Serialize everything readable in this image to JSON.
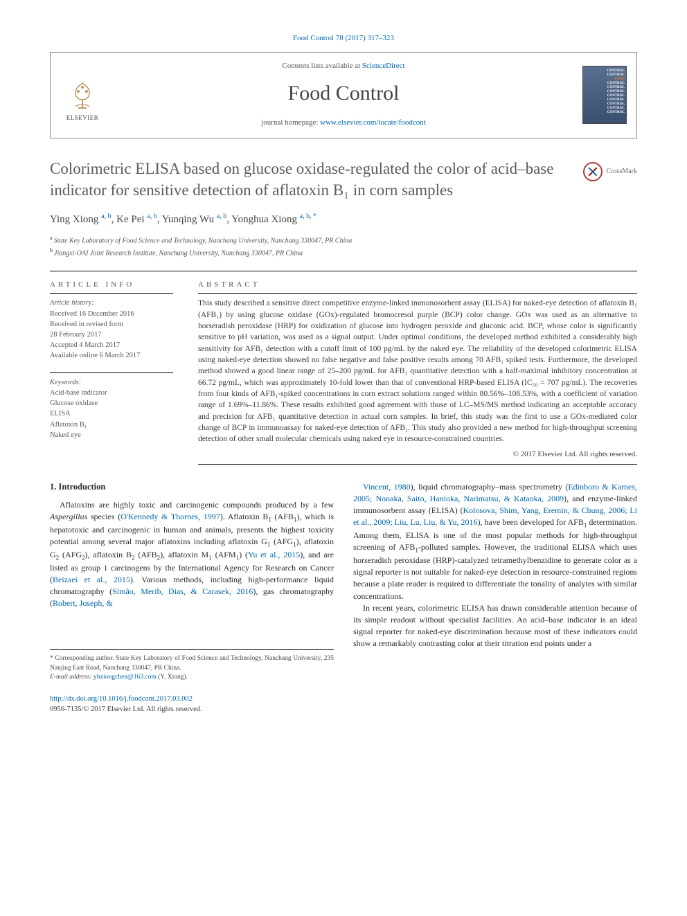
{
  "citation": {
    "journal": "Food Control",
    "vol_pages": "78 (2017) 317–323"
  },
  "header": {
    "contents_prefix": "Contents lists available at ",
    "contents_link": "ScienceDirect",
    "journal_name": "Food Control",
    "homepage_prefix": "journal homepage: ",
    "homepage_url": "www.elsevier.com/locate/foodcont",
    "elsevier_label": "ELSEVIER",
    "cover_lines": [
      "CONTROL",
      "CONTROL",
      "FOOD",
      "CONTROL",
      "CONTROL",
      "CONTROL",
      "CONTROL",
      "CONTROL",
      "CONTROL",
      "CONTROL",
      "CONTROL"
    ]
  },
  "title": "Colorimetric ELISA based on glucose oxidase-regulated the color of acid–base indicator for sensitive detection of aflatoxin B₁ in corn samples",
  "crossmark_label": "CrossMark",
  "authors_html": "Ying Xiong <span class='sup'>a, b</span>, Ke Pei <span class='sup'>a, b</span>, Yunqing Wu <span class='sup'>a, b</span>, Yonghua Xiong <span class='sup'>a, b, *</span>",
  "affiliations": [
    {
      "sup": "a",
      "text": "State Key Laboratory of Food Science and Technology, Nanchang University, Nanchang 330047, PR China"
    },
    {
      "sup": "b",
      "text": "Jiangxi-OAI Joint Research Institute, Nanchang University, Nanchang 330047, PR China"
    }
  ],
  "article_info": {
    "heading": "ARTICLE INFO",
    "history_label": "Article history:",
    "history": [
      "Received 16 December 2016",
      "Received in revised form",
      "28 February 2017",
      "Accepted 4 March 2017",
      "Available online 6 March 2017"
    ],
    "keywords_label": "Keywords:",
    "keywords": [
      "Acid-base indicator",
      "Glucose oxidase",
      "ELISA",
      "Aflatoxin B₁",
      "Naked eye"
    ]
  },
  "abstract": {
    "heading": "ABSTRACT",
    "text": "This study described a sensitive direct competitive enzyme-linked immunosorbent assay (ELISA) for naked-eye detection of aflatoxin B₁ (AFB₁) by using glucose oxidase (GOx)-regulated bromocresol purple (BCP) color change. GOx was used as an alternative to horseradish peroxidase (HRP) for oxidization of glucose into hydrogen peroxide and gluconic acid. BCP, whose color is significantly sensitive to pH variation, was used as a signal output. Under optimal conditions, the developed method exhibited a considerably high sensitivity for AFB₁ detection with a cutoff limit of 100 pg/mL by the naked eye. The reliability of the developed colorimetric ELISA using naked-eye detection showed no false negative and false positive results among 70 AFB₁ spiked tests. Furthermore, the developed method showed a good linear range of 25–200 pg/mL for AFB₁ quantitative detection with a half-maximal inhibitory concentration at 66.72 pg/mL, which was approximately 10-fold lower than that of conventional HRP-based ELISA (IC₅₀ = 707 pg/mL). The recoveries from four kinds of AFB₁-spiked concentrations in corn extract solutions ranged within 80.56%–108.53%, with a coefficient of variation range of 1.69%–11.86%. These results exhibited good agreement with those of LC–MS/MS method indicating an acceptable accuracy and precision for AFB₁ quantitative detection in actual corn samples. In brief, this study was the first to use a GOx-mediated color change of BCP in immunoassay for naked-eye detection of AFB₁. This study also provided a new method for high-throughput screening detection of other small molecular chemicals using naked eye in resource-constrained countries.",
    "copyright": "© 2017 Elsevier Ltd. All rights reserved."
  },
  "body": {
    "section_no": "1.",
    "section_title": "Introduction",
    "left_html": "Aflatoxins are highly toxic and carcinogenic compounds produced by a few <i>Aspergillus</i> species (<a href='#' class='ref-link'>O'Kennedy &amp; Thornes, 1997</a>). Aflatoxin B<sub>1</sub> (AFB<sub>1</sub>), which is hepatotoxic and carcinogenic in human and animals, presents the highest toxicity potential among several major aflatoxins including aflatoxin G<sub>1</sub> (AFG<sub>1</sub>), aflatoxin G<sub>2</sub> (AFG<sub>2</sub>), aflatoxin B<sub>2</sub> (AFB<sub>2</sub>), aflatoxin M<sub>1</sub> (AFM<sub>1</sub>) (<a href='#' class='ref-link'>Yu et al., 2015</a>), and are listed as group 1 carcinogens by the International Agency for Research on Cancer (<a href='#' class='ref-link'>Beizaei et al., 2015</a>). Various methods, including high-performance liquid chromatography (<a href='#' class='ref-link'>Simão, Merib, Dias, &amp; Carasek, 2016</a>), gas chromatography (<a href='#' class='ref-link'>Robert, Joseph, &amp;</a>",
    "right_html": "<a href='#' class='ref-link'>Vincent, 1980</a>), liquid chromatography–mass spectrometry (<a href='#' class='ref-link'>Edinboro &amp; Karnes, 2005; Nonaka, Saito, Hanioka, Narimatsu, &amp; Kataoka, 2009</a>), and enzyme-linked immunosorbent assay (ELISA) (<a href='#' class='ref-link'>Kolosova, Shim, Yang, Eremin, &amp; Chung, 2006; Li et al., 2009; Liu, Lu, Liu, &amp; Yu, 2016</a>), have been developed for AFB<sub>1</sub> determination. Among them, ELISA is one of the most popular methods for high-throughput screening of AFB<sub>1</sub>-polluted samples. However, the traditional ELISA which uses horseradish peroxidase (HRP)-catalyzed tetramethylbenzidine to generate color as a signal reporter is not suitable for naked-eye detection in resource-constrained regions because a plate reader is required to differentiate the tonality of analytes with similar concentrations.",
    "right_p2": "In recent years, colorimetric ELISA has drawn considerable attention because of its simple readout without specialist facilities. An acid–base indicator is an ideal signal reporter for naked-eye discrimination because most of these indicators could show a remarkably contrasting color at their titration end points under a"
  },
  "corresponding": {
    "star": "*",
    "text": "Corresponding author. State Key Laboratory of Food Science and Technology, Nanchang University, 235 Nanjing East Road, Nanchang 330047, PR China.",
    "email_label": "E-mail address:",
    "email": "yhxiongchen@163.com",
    "email_suffix": "(Y. Xiong)."
  },
  "footer": {
    "doi_url": "http://dx.doi.org/10.1016/j.foodcont.2017.03.002",
    "issn_line": "0956-7135/© 2017 Elsevier Ltd. All rights reserved."
  },
  "colors": {
    "link": "#0066aa",
    "heading_gray": "#5b5b5b",
    "body_text": "#2a2a2a",
    "border": "#000000"
  }
}
